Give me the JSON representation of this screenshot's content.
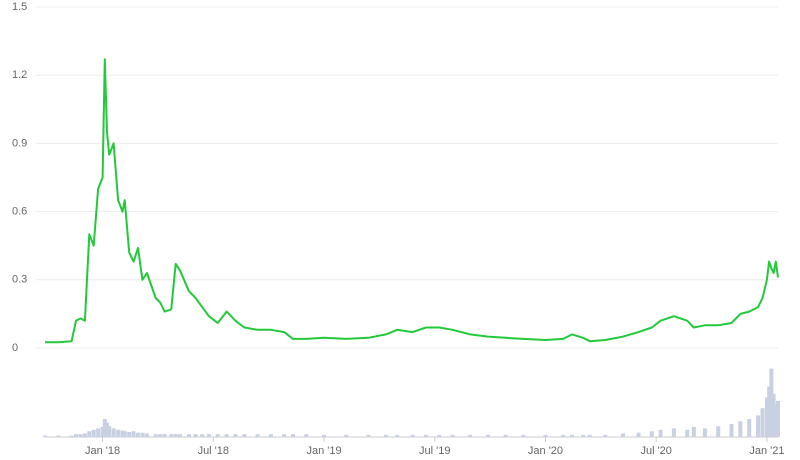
{
  "chart_data": {
    "type": "line",
    "x": [
      2017.74,
      2017.8,
      2017.86,
      2017.88,
      2017.9,
      2017.92,
      2017.94,
      2017.96,
      2017.98,
      2018.0,
      2018.01,
      2018.02,
      2018.03,
      2018.05,
      2018.07,
      2018.09,
      2018.1,
      2018.12,
      2018.14,
      2018.16,
      2018.18,
      2018.2,
      2018.24,
      2018.26,
      2018.28,
      2018.31,
      2018.33,
      2018.35,
      2018.39,
      2018.42,
      2018.45,
      2018.48,
      2018.52,
      2018.56,
      2018.6,
      2018.64,
      2018.7,
      2018.76,
      2018.82,
      2018.86,
      2018.92,
      2019.0,
      2019.1,
      2019.2,
      2019.28,
      2019.33,
      2019.4,
      2019.46,
      2019.52,
      2019.58,
      2019.66,
      2019.74,
      2019.82,
      2019.9,
      2020.0,
      2020.08,
      2020.12,
      2020.17,
      2020.2,
      2020.27,
      2020.35,
      2020.42,
      2020.48,
      2020.52,
      2020.58,
      2020.64,
      2020.67,
      2020.72,
      2020.78,
      2020.84,
      2020.88,
      2020.92,
      2020.96,
      2020.98,
      2021.0,
      2021.01,
      2021.02,
      2021.03,
      2021.04,
      2021.05
    ],
    "series": [
      {
        "color": "#22c93a",
        "values": [
          0.025,
          0.025,
          0.03,
          0.12,
          0.13,
          0.12,
          0.5,
          0.45,
          0.7,
          0.75,
          1.27,
          0.95,
          0.85,
          0.9,
          0.65,
          0.6,
          0.65,
          0.42,
          0.38,
          0.44,
          0.3,
          0.33,
          0.22,
          0.2,
          0.16,
          0.17,
          0.37,
          0.34,
          0.25,
          0.22,
          0.18,
          0.14,
          0.11,
          0.16,
          0.12,
          0.09,
          0.08,
          0.08,
          0.07,
          0.04,
          0.04,
          0.045,
          0.04,
          0.045,
          0.06,
          0.08,
          0.07,
          0.09,
          0.09,
          0.08,
          0.06,
          0.05,
          0.045,
          0.04,
          0.035,
          0.04,
          0.06,
          0.045,
          0.03,
          0.035,
          0.05,
          0.07,
          0.09,
          0.12,
          0.14,
          0.12,
          0.09,
          0.1,
          0.1,
          0.11,
          0.15,
          0.16,
          0.18,
          0.22,
          0.3,
          0.38,
          0.35,
          0.33,
          0.38,
          0.31
        ]
      },
      {
        "color": "#c9d0e2",
        "axis": "y2",
        "values": [
          2,
          2,
          2,
          4,
          4,
          5,
          8,
          10,
          12,
          14,
          25,
          20,
          15,
          12,
          10,
          9,
          8,
          7,
          8,
          6,
          6,
          5,
          4,
          4,
          4,
          4,
          4,
          4,
          4,
          4,
          4,
          4,
          4,
          4,
          4,
          4,
          4,
          4,
          4,
          4,
          4,
          3,
          3,
          3,
          3,
          3,
          3,
          3,
          3,
          3,
          3,
          3,
          3,
          3,
          3,
          3,
          3,
          3,
          3,
          3,
          5,
          6,
          8,
          10,
          12,
          10,
          14,
          12,
          15,
          18,
          22,
          25,
          30,
          40,
          55,
          70,
          95,
          60,
          45,
          50
        ]
      }
    ],
    "xlim": [
      2017.74,
      2021.05
    ],
    "xticks": [
      {
        "value": 2018,
        "label": "Jan '18"
      },
      {
        "value": 2018.5,
        "label": "Jul '18"
      },
      {
        "value": 2019,
        "label": "Jan '19"
      },
      {
        "value": 2019.5,
        "label": "Jul '19"
      },
      {
        "value": 2020,
        "label": "Jan '20"
      },
      {
        "value": 2020.5,
        "label": "Jul '20"
      },
      {
        "value": 2021,
        "label": "Jan '21"
      }
    ],
    "ylim": [
      0,
      1.5
    ],
    "yticks": [
      0,
      0.3,
      0.6,
      0.9,
      1.2,
      1.5
    ],
    "y2lim": [
      0,
      100
    ],
    "grid": true
  }
}
